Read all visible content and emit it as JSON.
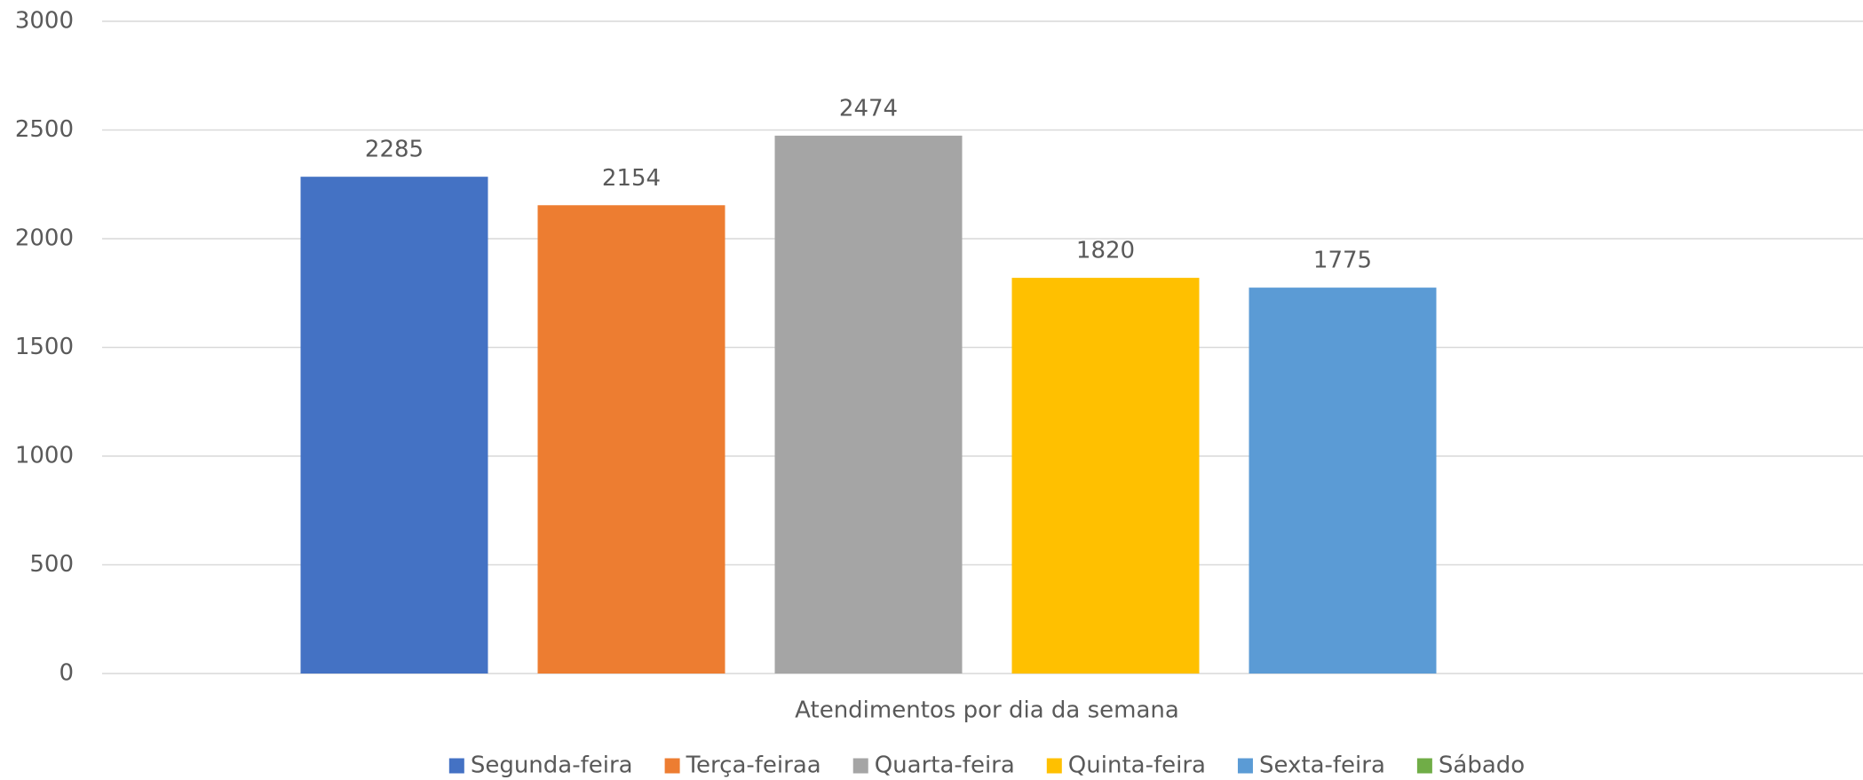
{
  "chart_data": {
    "type": "bar",
    "categories": [
      "Atendimentos por dia da semana"
    ],
    "series": [
      {
        "name": "Segunda-feira",
        "color": "#4472c4",
        "values": [
          2285
        ]
      },
      {
        "name": "Terça-feiraa",
        "color": "#ed7d31",
        "values": [
          2154
        ]
      },
      {
        "name": "Quarta-feira",
        "color": "#a5a5a5",
        "values": [
          2474
        ]
      },
      {
        "name": "Quinta-feira",
        "color": "#ffc000",
        "values": [
          1820
        ]
      },
      {
        "name": "Sexta-feira",
        "color": "#5b9bd5",
        "values": [
          1775
        ]
      },
      {
        "name": "Sábado",
        "color": "#70ad47",
        "values": [
          null
        ]
      }
    ],
    "ylim": [
      0,
      3000
    ],
    "yticks": [
      0,
      500,
      1000,
      1500,
      2000,
      2500,
      3000
    ],
    "grid": true,
    "legend": "bottom"
  }
}
